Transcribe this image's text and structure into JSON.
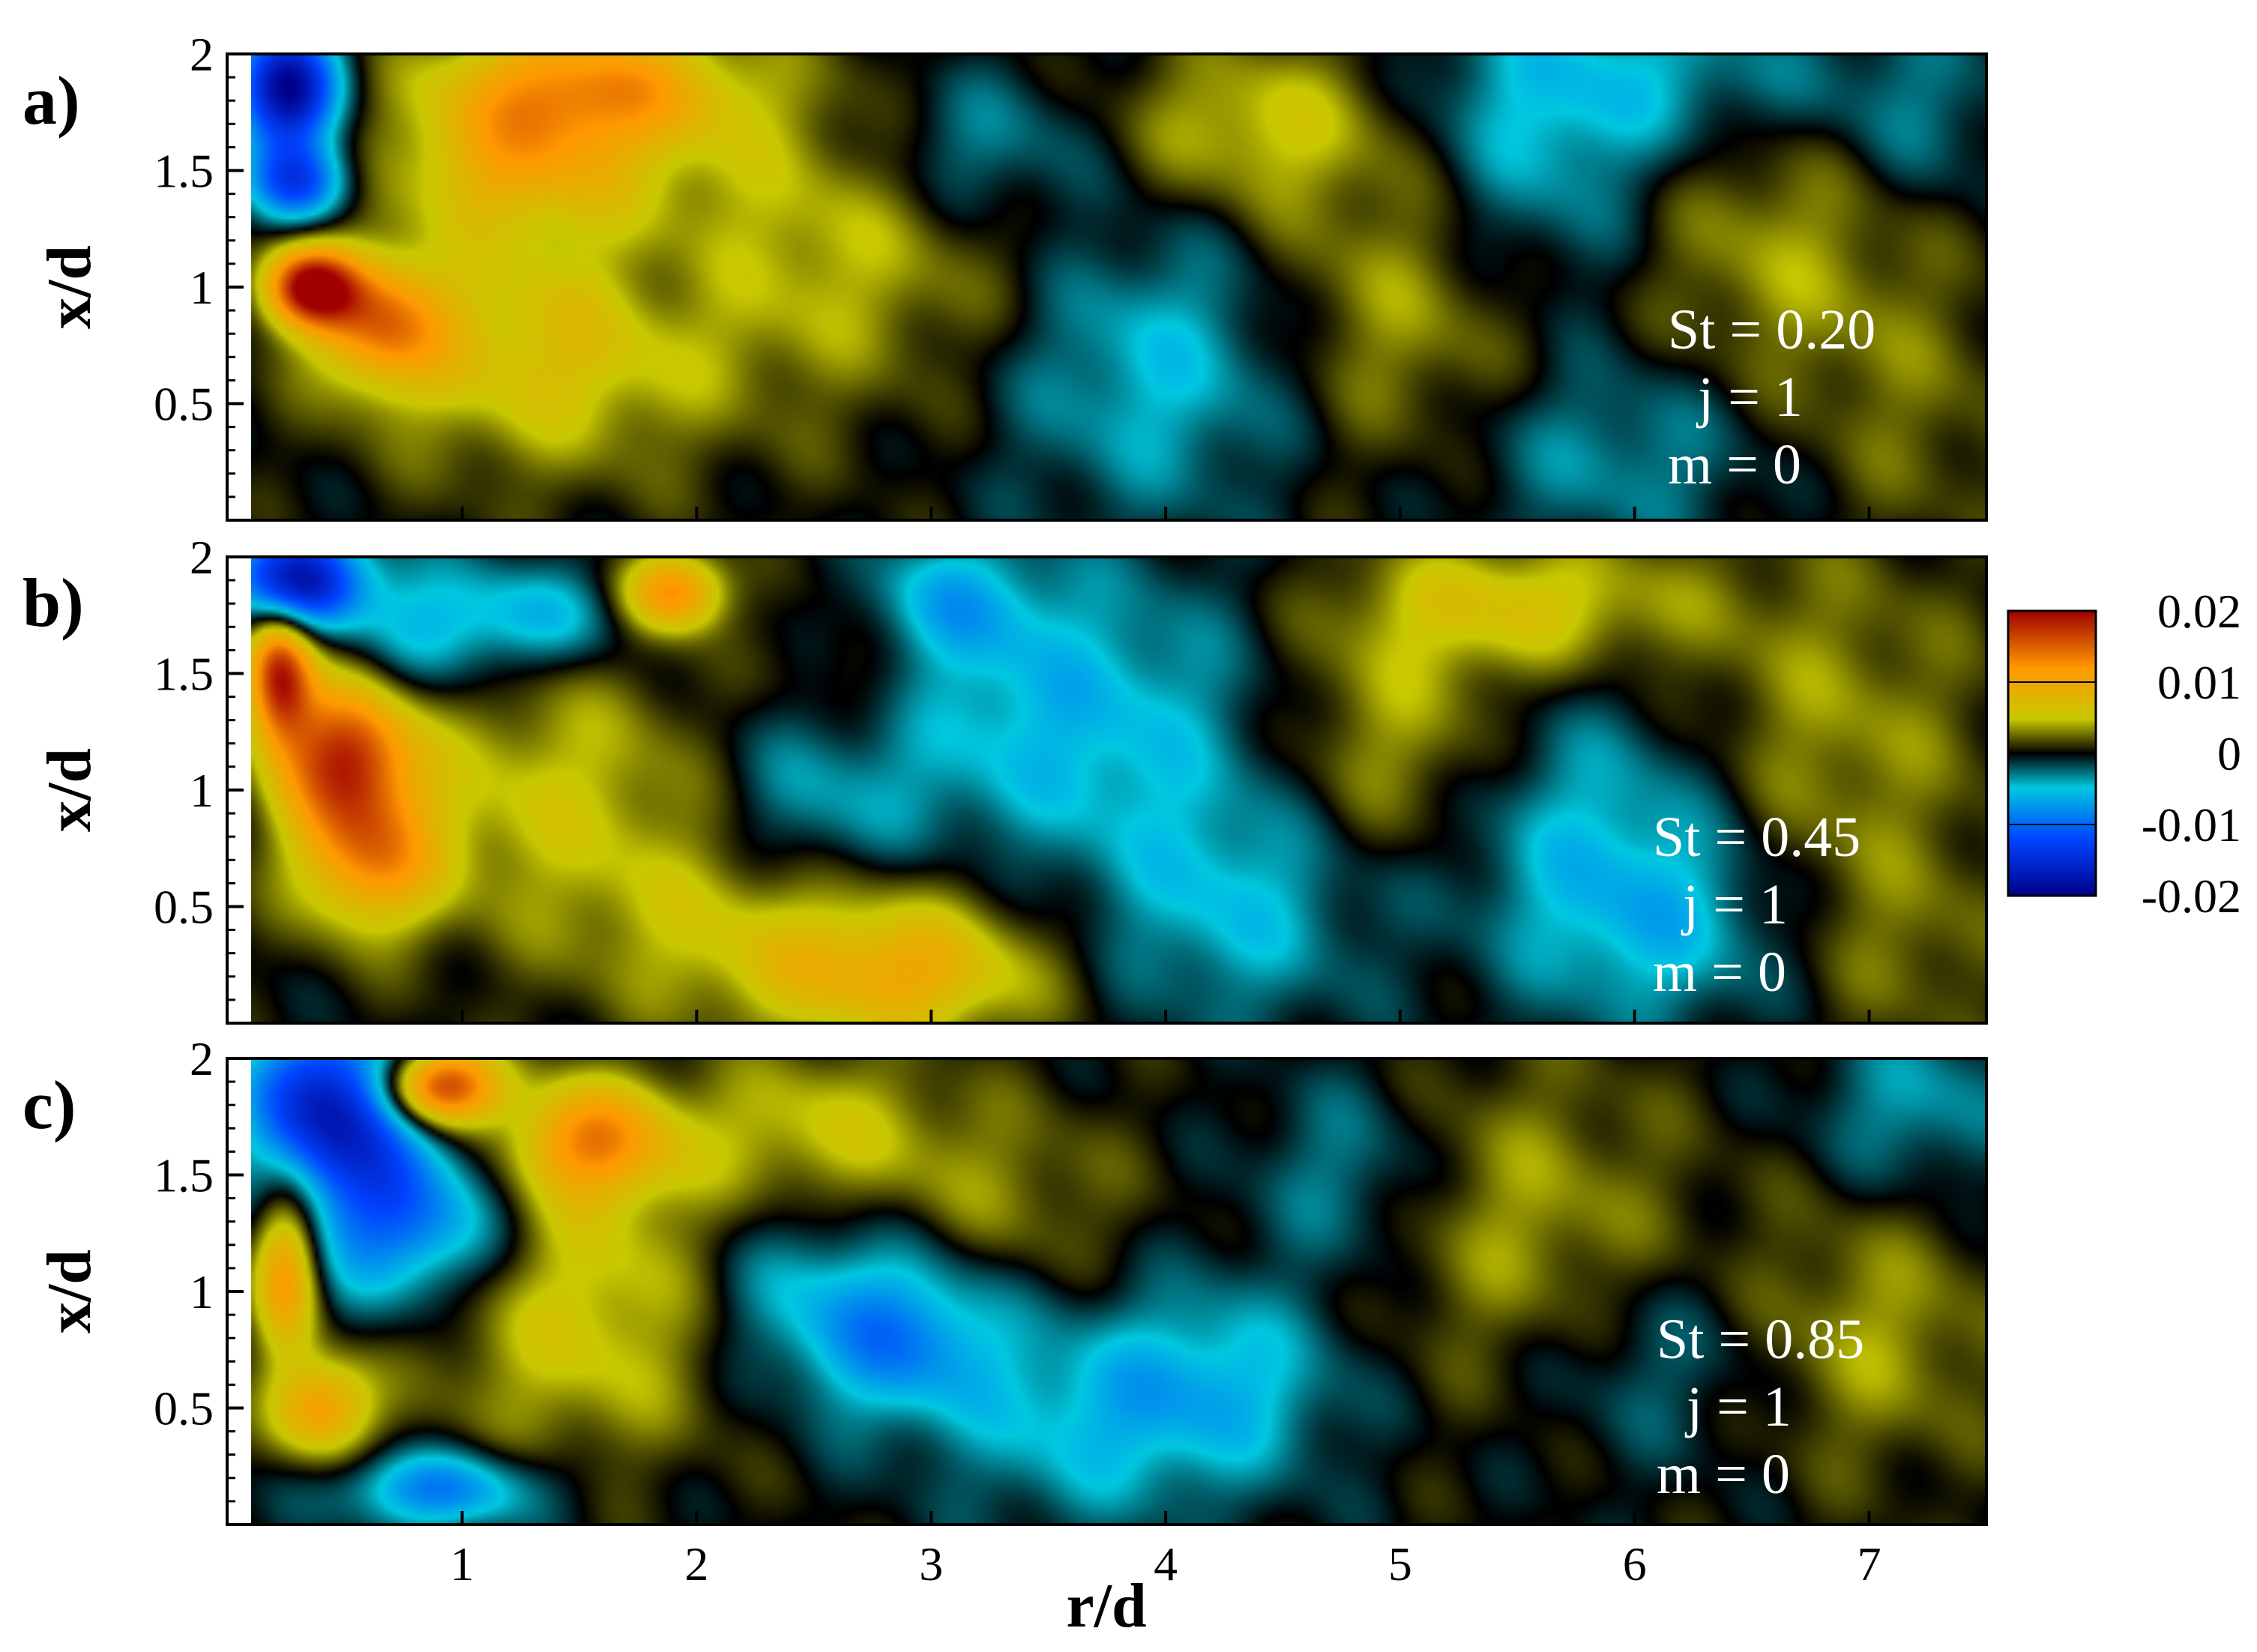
{
  "chart_data": {
    "type": "heatmap",
    "xlabel": "r/d",
    "ylabel": "x/d",
    "xlim": [
      0.1,
      7.5
    ],
    "ylim": [
      0,
      2
    ],
    "x_ticks": [
      "1",
      "2",
      "3",
      "4",
      "5",
      "6",
      "7"
    ],
    "y_ticks": [
      "0.5",
      "1",
      "1.5",
      "2"
    ],
    "colorbar": {
      "range": [
        -0.02,
        0.02
      ],
      "tick_labels": [
        "0.02",
        "0.01",
        "0",
        "-0.01",
        "-0.02"
      ],
      "colors": [
        "#00008b",
        "#0044ff",
        "#00c8e0",
        "#000000",
        "#c8c800",
        "#ff9900",
        "#a00000"
      ]
    },
    "panels": [
      {
        "label": "a)",
        "annotations": [
          "St = 0.20",
          "j = 1",
          "m = 0"
        ],
        "blobs": [
          {
            "x": 0.25,
            "y": 1.85,
            "v": -0.02,
            "sx": 0.15,
            "sy": 0.18
          },
          {
            "x": 0.3,
            "y": 1.45,
            "v": -0.012,
            "sx": 0.15,
            "sy": 0.12
          },
          {
            "x": 0.35,
            "y": 1.0,
            "v": 0.019,
            "sx": 0.14,
            "sy": 0.12
          },
          {
            "x": 0.65,
            "y": 0.85,
            "v": 0.012,
            "sx": 0.2,
            "sy": 0.2
          },
          {
            "x": 1.5,
            "y": 1.85,
            "v": 0.012,
            "sx": 0.45,
            "sy": 0.2
          },
          {
            "x": 1.2,
            "y": 1.5,
            "v": 0.007,
            "sx": 0.35,
            "sy": 0.2
          },
          {
            "x": 1.3,
            "y": 0.7,
            "v": 0.006,
            "sx": 0.5,
            "sy": 0.35
          },
          {
            "x": 2.5,
            "y": 1.2,
            "v": 0.005,
            "sx": 0.8,
            "sy": 0.5
          },
          {
            "x": 1.9,
            "y": 1.05,
            "v": -0.002,
            "sx": 0.25,
            "sy": 0.2
          },
          {
            "x": 3.2,
            "y": 1.6,
            "v": -0.005,
            "sx": 0.35,
            "sy": 0.25
          },
          {
            "x": 4.0,
            "y": 0.7,
            "v": -0.006,
            "sx": 0.5,
            "sy": 0.45
          },
          {
            "x": 4.4,
            "y": 1.7,
            "v": 0.005,
            "sx": 0.4,
            "sy": 0.25
          },
          {
            "x": 5.0,
            "y": 0.9,
            "v": 0.005,
            "sx": 0.5,
            "sy": 0.5
          },
          {
            "x": 5.6,
            "y": 1.5,
            "v": -0.005,
            "sx": 0.4,
            "sy": 0.5
          },
          {
            "x": 6.2,
            "y": 1.9,
            "v": -0.004,
            "sx": 0.6,
            "sy": 0.25
          },
          {
            "x": 6.6,
            "y": 1.2,
            "v": 0.004,
            "sx": 0.5,
            "sy": 0.5
          },
          {
            "x": 7.2,
            "y": 1.7,
            "v": -0.003,
            "sx": 0.3,
            "sy": 0.3
          },
          {
            "x": 5.9,
            "y": 0.3,
            "v": -0.004,
            "sx": 0.5,
            "sy": 0.3
          },
          {
            "x": 7.2,
            "y": 0.4,
            "v": 0.002,
            "sx": 0.4,
            "sy": 0.4
          }
        ]
      },
      {
        "label": "b)",
        "annotations": [
          "St = 0.45",
          "j = 1",
          "m = 0"
        ],
        "blobs": [
          {
            "x": 0.3,
            "y": 1.9,
            "v": -0.018,
            "sx": 0.2,
            "sy": 0.15
          },
          {
            "x": 0.22,
            "y": 1.5,
            "v": 0.018,
            "sx": 0.1,
            "sy": 0.2
          },
          {
            "x": 0.5,
            "y": 1.15,
            "v": 0.016,
            "sx": 0.2,
            "sy": 0.22
          },
          {
            "x": 0.6,
            "y": 0.7,
            "v": 0.011,
            "sx": 0.22,
            "sy": 0.22
          },
          {
            "x": 0.9,
            "y": 1.7,
            "v": -0.006,
            "sx": 0.25,
            "sy": 0.2
          },
          {
            "x": 1.4,
            "y": 1.75,
            "v": -0.005,
            "sx": 0.25,
            "sy": 0.15
          },
          {
            "x": 1.9,
            "y": 1.85,
            "v": 0.013,
            "sx": 0.15,
            "sy": 0.12
          },
          {
            "x": 1.4,
            "y": 1.0,
            "v": 0.005,
            "sx": 0.6,
            "sy": 0.4
          },
          {
            "x": 2.4,
            "y": 0.4,
            "v": 0.006,
            "sx": 0.6,
            "sy": 0.3
          },
          {
            "x": 2.9,
            "y": 0.2,
            "v": 0.007,
            "sx": 0.4,
            "sy": 0.2
          },
          {
            "x": 2.5,
            "y": 0.9,
            "v": -0.005,
            "sx": 0.35,
            "sy": 0.35
          },
          {
            "x": 2.7,
            "y": 1.6,
            "v": 0.004,
            "sx": 0.25,
            "sy": 0.3
          },
          {
            "x": 3.0,
            "y": 1.8,
            "v": -0.006,
            "sx": 0.3,
            "sy": 0.2
          },
          {
            "x": 3.6,
            "y": 1.3,
            "v": -0.006,
            "sx": 0.6,
            "sy": 0.45
          },
          {
            "x": 4.3,
            "y": 0.5,
            "v": -0.005,
            "sx": 0.4,
            "sy": 0.35
          },
          {
            "x": 5.0,
            "y": 1.2,
            "v": 0.005,
            "sx": 0.4,
            "sy": 0.4
          },
          {
            "x": 5.5,
            "y": 1.8,
            "v": 0.006,
            "sx": 0.5,
            "sy": 0.2
          },
          {
            "x": 5.8,
            "y": 0.9,
            "v": -0.005,
            "sx": 0.5,
            "sy": 0.4
          },
          {
            "x": 6.1,
            "y": 0.4,
            "v": -0.005,
            "sx": 0.4,
            "sy": 0.3
          },
          {
            "x": 6.8,
            "y": 1.2,
            "v": 0.004,
            "sx": 0.5,
            "sy": 0.6
          },
          {
            "x": 7.2,
            "y": 0.3,
            "v": 0.002,
            "sx": 0.3,
            "sy": 0.3
          }
        ]
      },
      {
        "label": "c)",
        "annotations": [
          "St = 0.85",
          "j = 1",
          "m = 0"
        ],
        "blobs": [
          {
            "x": 0.45,
            "y": 1.8,
            "v": -0.017,
            "sx": 0.25,
            "sy": 0.25
          },
          {
            "x": 0.9,
            "y": 1.88,
            "v": 0.019,
            "sx": 0.18,
            "sy": 0.12
          },
          {
            "x": 1.55,
            "y": 1.65,
            "v": 0.012,
            "sx": 0.25,
            "sy": 0.18
          },
          {
            "x": 0.75,
            "y": 1.3,
            "v": -0.011,
            "sx": 0.3,
            "sy": 0.25
          },
          {
            "x": 0.25,
            "y": 1.1,
            "v": 0.012,
            "sx": 0.1,
            "sy": 0.25
          },
          {
            "x": 0.4,
            "y": 0.5,
            "v": 0.011,
            "sx": 0.15,
            "sy": 0.15
          },
          {
            "x": 0.9,
            "y": 0.15,
            "v": -0.009,
            "sx": 0.3,
            "sy": 0.12
          },
          {
            "x": 1.6,
            "y": 1.1,
            "v": 0.005,
            "sx": 0.5,
            "sy": 0.35
          },
          {
            "x": 1.5,
            "y": 0.6,
            "v": 0.003,
            "sx": 0.5,
            "sy": 0.3
          },
          {
            "x": 2.4,
            "y": 1.0,
            "v": -0.005,
            "sx": 0.35,
            "sy": 0.3
          },
          {
            "x": 2.9,
            "y": 0.8,
            "v": -0.008,
            "sx": 0.3,
            "sy": 0.25
          },
          {
            "x": 2.5,
            "y": 1.7,
            "v": 0.005,
            "sx": 0.4,
            "sy": 0.25
          },
          {
            "x": 3.3,
            "y": 1.4,
            "v": 0.003,
            "sx": 0.4,
            "sy": 0.3
          },
          {
            "x": 3.6,
            "y": 0.4,
            "v": -0.004,
            "sx": 0.4,
            "sy": 0.3
          },
          {
            "x": 4.2,
            "y": 0.6,
            "v": -0.006,
            "sx": 0.4,
            "sy": 0.3
          },
          {
            "x": 4.8,
            "y": 1.5,
            "v": -0.004,
            "sx": 0.3,
            "sy": 0.3
          },
          {
            "x": 5.5,
            "y": 1.3,
            "v": 0.004,
            "sx": 0.5,
            "sy": 0.5
          },
          {
            "x": 6.1,
            "y": 0.7,
            "v": -0.003,
            "sx": 0.4,
            "sy": 0.3
          },
          {
            "x": 7.2,
            "y": 1.8,
            "v": -0.004,
            "sx": 0.3,
            "sy": 0.25
          },
          {
            "x": 7.0,
            "y": 0.8,
            "v": 0.004,
            "sx": 0.4,
            "sy": 0.4
          }
        ]
      }
    ]
  }
}
